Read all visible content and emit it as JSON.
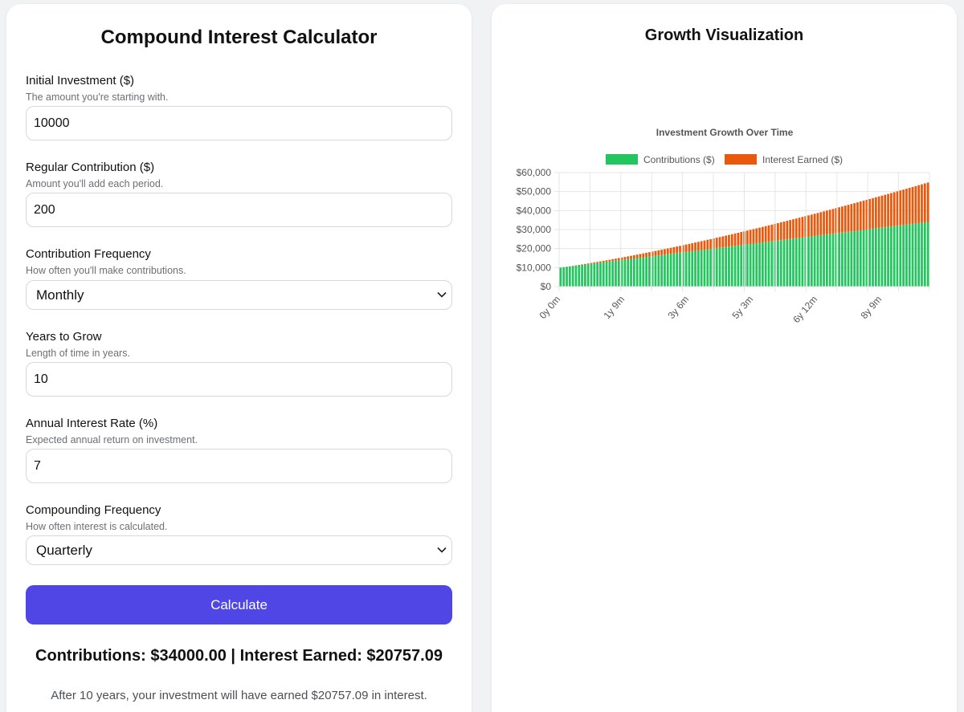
{
  "calculator": {
    "title": "Compound Interest Calculator",
    "initial": {
      "label": "Initial Investment ($)",
      "help": "The amount you're starting with.",
      "value": "10000"
    },
    "contribution": {
      "label": "Regular Contribution ($)",
      "help": "Amount you'll add each period.",
      "value": "200"
    },
    "contribution_frequency": {
      "label": "Contribution Frequency",
      "help": "How often you'll make contributions.",
      "selected": "Monthly"
    },
    "years": {
      "label": "Years to Grow",
      "help": "Length of time in years.",
      "value": "10"
    },
    "rate": {
      "label": "Annual Interest Rate (%)",
      "help": "Expected annual return on investment.",
      "value": "7"
    },
    "compounding_frequency": {
      "label": "Compounding Frequency",
      "help": "How often interest is calculated.",
      "selected": "Quarterly"
    },
    "button_label": "Calculate",
    "summary": "Contributions: $34000.00 | Interest Earned: $20757.09",
    "detail": "After 10 years, your investment will have earned $20757.09 in interest."
  },
  "visualization": {
    "title": "Growth Visualization"
  },
  "colors": {
    "accent": "#4f46e5",
    "contributions": "#22c55e",
    "interest": "#ea580c"
  },
  "chart_data": {
    "type": "bar",
    "stacked": true,
    "title": "Investment Growth Over Time",
    "xlabel": "",
    "ylabel": "",
    "ylim": [
      0,
      60000
    ],
    "yticks": [
      "$0",
      "$10,000",
      "$20,000",
      "$30,000",
      "$40,000",
      "$50,000",
      "$60,000"
    ],
    "legend_position": "top",
    "grid": true,
    "xtick_labels": [
      "0y 0m",
      "1y 9m",
      "3y 6m",
      "5y 3m",
      "6y 12m",
      "8y 9m"
    ],
    "x_description": "monthly periods, 0 through 120",
    "period_count": 121,
    "contribution_start": 10000,
    "contribution_per_period": 200,
    "series": [
      {
        "name": "Contributions ($)",
        "color": "#22c55e",
        "start_value": 10000,
        "end_value": 34000
      },
      {
        "name": "Interest Earned ($)",
        "color": "#ea580c",
        "start_value": 0,
        "end_value": 20757.09
      }
    ]
  }
}
